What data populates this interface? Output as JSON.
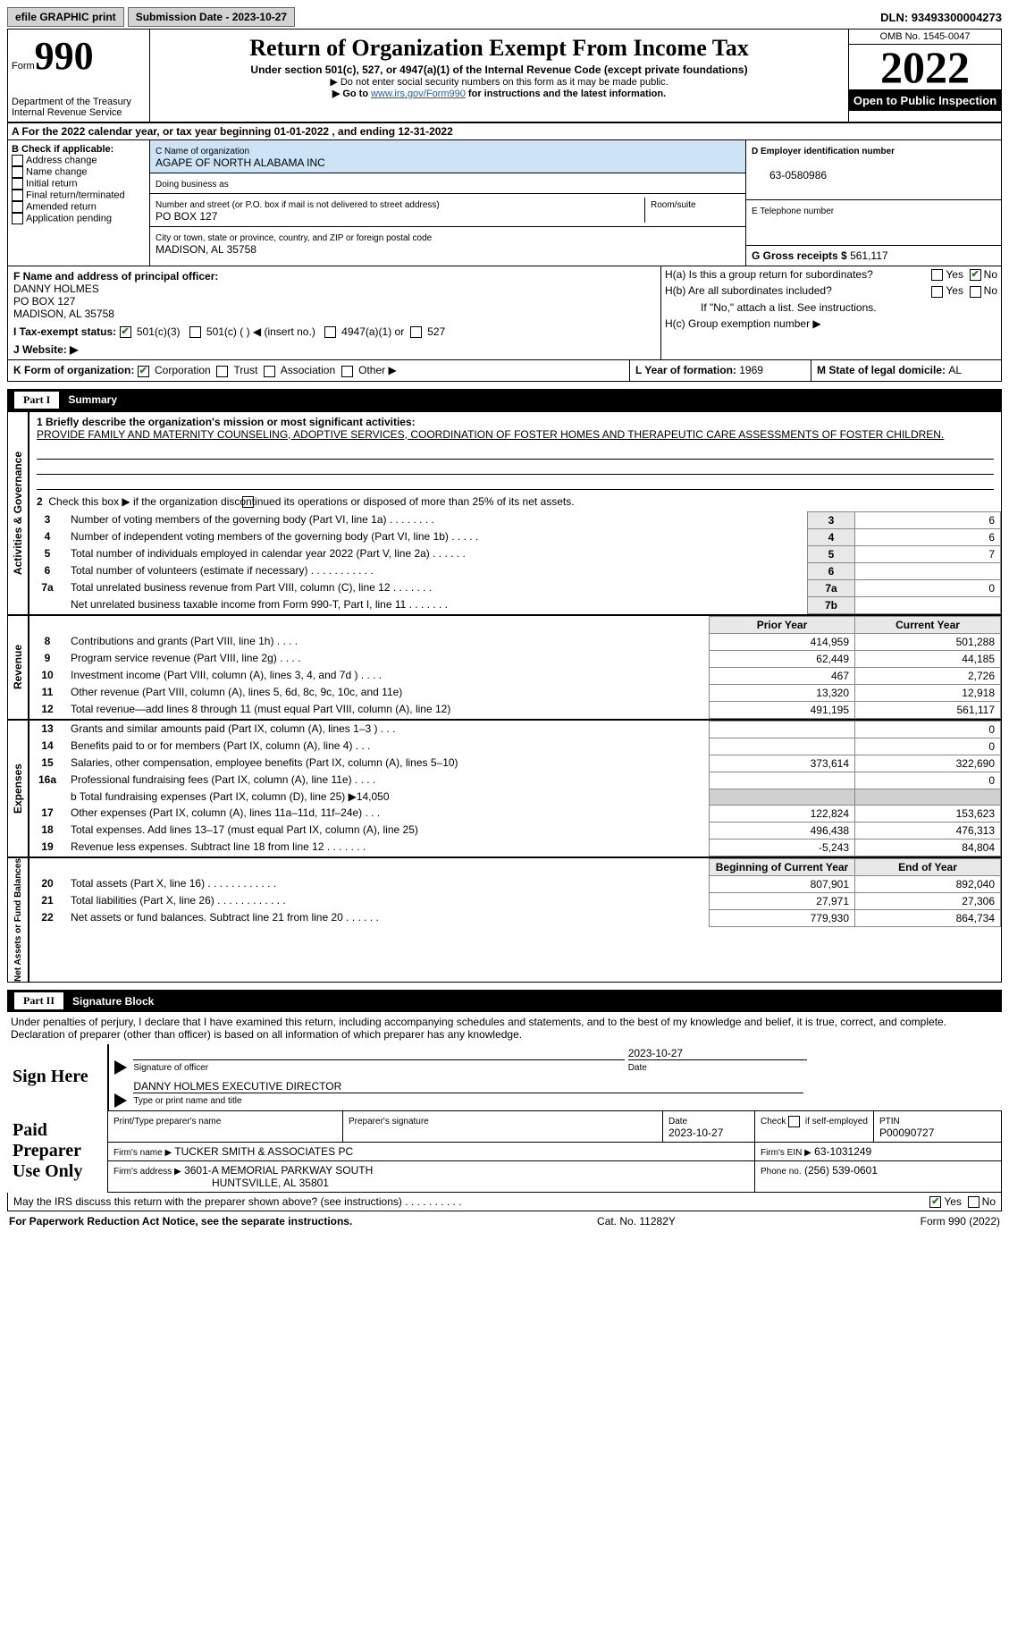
{
  "top": {
    "efile": "efile GRAPHIC print",
    "subdate_label": "Submission Date - 2023-10-27",
    "dln": "DLN: 93493300004273"
  },
  "header": {
    "form_label": "Form",
    "form_no": "990",
    "dept": "Department of the Treasury",
    "irs": "Internal Revenue Service",
    "title": "Return of Organization Exempt From Income Tax",
    "subtitle": "Under section 501(c), 527, or 4947(a)(1) of the Internal Revenue Code (except private foundations)",
    "note1": "▶ Do not enter social security numbers on this form as it may be made public.",
    "note2_pre": "▶ Go to ",
    "note2_link": "www.irs.gov/Form990",
    "note2_post": " for instructions and the latest information.",
    "omb": "OMB No. 1545-0047",
    "year": "2022",
    "inspect": "Open to Public Inspection"
  },
  "A": "A For the 2022 calendar year, or tax year beginning 01-01-2022    , and ending 12-31-2022",
  "B": {
    "label": "B Check if applicable:",
    "opts": [
      "Address change",
      "Name change",
      "Initial return",
      "Final return/terminated",
      "Amended return",
      "Application pending"
    ]
  },
  "C": {
    "name_label": "C Name of organization",
    "name": "AGAPE OF NORTH ALABAMA INC",
    "dba_label": "Doing business as",
    "dba": "",
    "street_label": "Number and street (or P.O. box if mail is not delivered to street address)",
    "room_label": "Room/suite",
    "street": "PO BOX 127",
    "city_label": "City or town, state or province, country, and ZIP or foreign postal code",
    "city": "MADISON, AL  35758"
  },
  "D": {
    "label": "D Employer identification number",
    "val": "63-0580986"
  },
  "E": {
    "label": "E Telephone number",
    "val": ""
  },
  "G": {
    "label": "G Gross receipts $",
    "val": "561,117"
  },
  "F": {
    "label": "F  Name and address of principal officer:",
    "name": "DANNY HOLMES",
    "street": "PO BOX 127",
    "city": "MADISON, AL  35758"
  },
  "H": {
    "a": "H(a)  Is this a group return for subordinates?",
    "b": "H(b)  Are all subordinates included?",
    "bnote": "If \"No,\" attach a list. See instructions.",
    "c": "H(c)  Group exemption number ▶",
    "yes": "Yes",
    "no": "No"
  },
  "I": {
    "label": "I    Tax-exempt status:",
    "o1": "501(c)(3)",
    "o2": "501(c) (   ) ◀ (insert no.)",
    "o3": "4947(a)(1) or",
    "o4": "527"
  },
  "J": {
    "label": "J   Website: ▶"
  },
  "K": {
    "label": "K Form of organization:",
    "o1": "Corporation",
    "o2": "Trust",
    "o3": "Association",
    "o4": "Other ▶"
  },
  "L": {
    "label": "L Year of formation: ",
    "val": "1969"
  },
  "M": {
    "label": "M State of legal domicile: ",
    "val": "AL"
  },
  "part1_title": "Summary",
  "sideA": "Activities & Governance",
  "sideR": "Revenue",
  "sideE": "Expenses",
  "sideN": "Net Assets or Fund Balances",
  "briefly": "1   Briefly describe the organization's mission or most significant activities:",
  "mission": "PROVIDE FAMILY AND MATERNITY COUNSELING, ADOPTIVE SERVICES, COORDINATION OF FOSTER HOMES AND THERAPEUTIC CARE ASSESSMENTS OF FOSTER CHILDREN.",
  "line2": "Check this box ▶        if the organization discontinued its operations or disposed of more than 25% of its net assets.",
  "line16b": "b  Total fundraising expenses (Part IX, column (D), line 25) ▶14,050",
  "ag_rows": [
    {
      "n": "3",
      "d": "Number of voting members of the governing body (Part VI, line 1a)   .   .   .   .   .   .   .   .",
      "k": "3",
      "v": "6"
    },
    {
      "n": "4",
      "d": "Number of independent voting members of the governing body (Part VI, line 1b)   .   .   .   .   .",
      "k": "4",
      "v": "6"
    },
    {
      "n": "5",
      "d": "Total number of individuals employed in calendar year 2022 (Part V, line 2a)   .   .   .   .   .   .",
      "k": "5",
      "v": "7"
    },
    {
      "n": "6",
      "d": "Total number of volunteers (estimate if necessary)   .   .   .   .   .   .   .   .   .   .   .",
      "k": "6",
      "v": ""
    },
    {
      "n": "7a",
      "d": "Total unrelated business revenue from Part VIII, column (C), line 12   .   .   .   .   .   .   .",
      "k": "7a",
      "v": "0"
    },
    {
      "n": "",
      "d": "Net unrelated business taxable income from Form 990-T, Part I, line 11   .   .   .   .   .   .   .",
      "k": "7b",
      "v": ""
    }
  ],
  "pycol": "Prior Year",
  "cycol": "Current Year",
  "rev_rows": [
    {
      "n": "8",
      "d": "Contributions and grants (Part VIII, line 1h)   .   .   .   .",
      "py": "414,959",
      "cy": "501,288"
    },
    {
      "n": "9",
      "d": "Program service revenue (Part VIII, line 2g)   .   .   .   .",
      "py": "62,449",
      "cy": "44,185"
    },
    {
      "n": "10",
      "d": "Investment income (Part VIII, column (A), lines 3, 4, and 7d )   .   .   .   .",
      "py": "467",
      "cy": "2,726"
    },
    {
      "n": "11",
      "d": "Other revenue (Part VIII, column (A), lines 5, 6d, 8c, 9c, 10c, and 11e)",
      "py": "13,320",
      "cy": "12,918"
    },
    {
      "n": "12",
      "d": "Total revenue—add lines 8 through 11 (must equal Part VIII, column (A), line 12)",
      "py": "491,195",
      "cy": "561,117"
    }
  ],
  "exp_rows": [
    {
      "n": "13",
      "d": "Grants and similar amounts paid (Part IX, column (A), lines 1–3 )   .   .   .",
      "py": "",
      "cy": "0"
    },
    {
      "n": "14",
      "d": "Benefits paid to or for members (Part IX, column (A), line 4)   .   .   .",
      "py": "",
      "cy": "0"
    },
    {
      "n": "15",
      "d": "Salaries, other compensation, employee benefits (Part IX, column (A), lines 5–10)",
      "py": "373,614",
      "cy": "322,690"
    },
    {
      "n": "16a",
      "d": "Professional fundraising fees (Part IX, column (A), line 11e)   .   .   .   .",
      "py": "",
      "cy": "0"
    }
  ],
  "exp_rows2": [
    {
      "n": "17",
      "d": "Other expenses (Part IX, column (A), lines 11a–11d, 11f–24e)   .   .   .",
      "py": "122,824",
      "cy": "153,623"
    },
    {
      "n": "18",
      "d": "Total expenses. Add lines 13–17 (must equal Part IX, column (A), line 25)",
      "py": "496,438",
      "cy": "476,313"
    },
    {
      "n": "19",
      "d": "Revenue less expenses. Subtract line 18 from line 12   .   .   .   .   .   .   .",
      "py": "-5,243",
      "cy": "84,804"
    }
  ],
  "bocol": "Beginning of Current Year",
  "eocol": "End of Year",
  "na_rows": [
    {
      "n": "20",
      "d": "Total assets (Part X, line 16)   .   .   .   .   .   .   .   .   .   .   .   .",
      "py": "807,901",
      "cy": "892,040"
    },
    {
      "n": "21",
      "d": "Total liabilities (Part X, line 26)   .   .   .   .   .   .   .   .   .   .   .   .",
      "py": "27,971",
      "cy": "27,306"
    },
    {
      "n": "22",
      "d": "Net assets or fund balances. Subtract line 21 from line 20   .   .   .   .   .   .",
      "py": "779,930",
      "cy": "864,734"
    }
  ],
  "part2_title": "Signature Block",
  "sig_intro": "Under penalties of perjury, I declare that I have examined this return, including accompanying schedules and statements, and to the best of my knowledge and belief, it is true, correct, and complete. Declaration of preparer (other than officer) is based on all information of which preparer has any knowledge.",
  "sign_here": "Sign Here",
  "sig_officer_label": "Signature of officer",
  "sig_date": "2023-10-27",
  "date_label": "Date",
  "sig_name": "DANNY HOLMES  EXECUTIVE DIRECTOR",
  "sig_name_label": "Type or print name and title",
  "paid": "Paid Preparer Use Only",
  "pp_name_label": "Print/Type preparer's name",
  "pp_sig_label": "Preparer's signature",
  "pp_date": "2023-10-27",
  "pp_check": "Check          if self-employed",
  "ptin_label": "PTIN",
  "ptin": "P00090727",
  "firm_name_label": "Firm's name    ▶",
  "firm_name": "TUCKER SMITH & ASSOCIATES PC",
  "firm_ein_label": "Firm's EIN ▶",
  "firm_ein": "63-1031249",
  "firm_addr_label": "Firm's address ▶",
  "firm_addr1": "3601-A MEMORIAL PARKWAY SOUTH",
  "firm_addr2": "HUNTSVILLE, AL  35801",
  "firm_phone_label": "Phone no.",
  "firm_phone": "(256) 539-0601",
  "discuss": "May the IRS discuss this return with the preparer shown above? (see instructions)   .   .   .   .   .   .   .   .   .   .",
  "footer1": "For Paperwork Reduction Act Notice, see the separate instructions.",
  "footer2": "Cat. No. 11282Y",
  "footer3": "Form 990 (2022)"
}
